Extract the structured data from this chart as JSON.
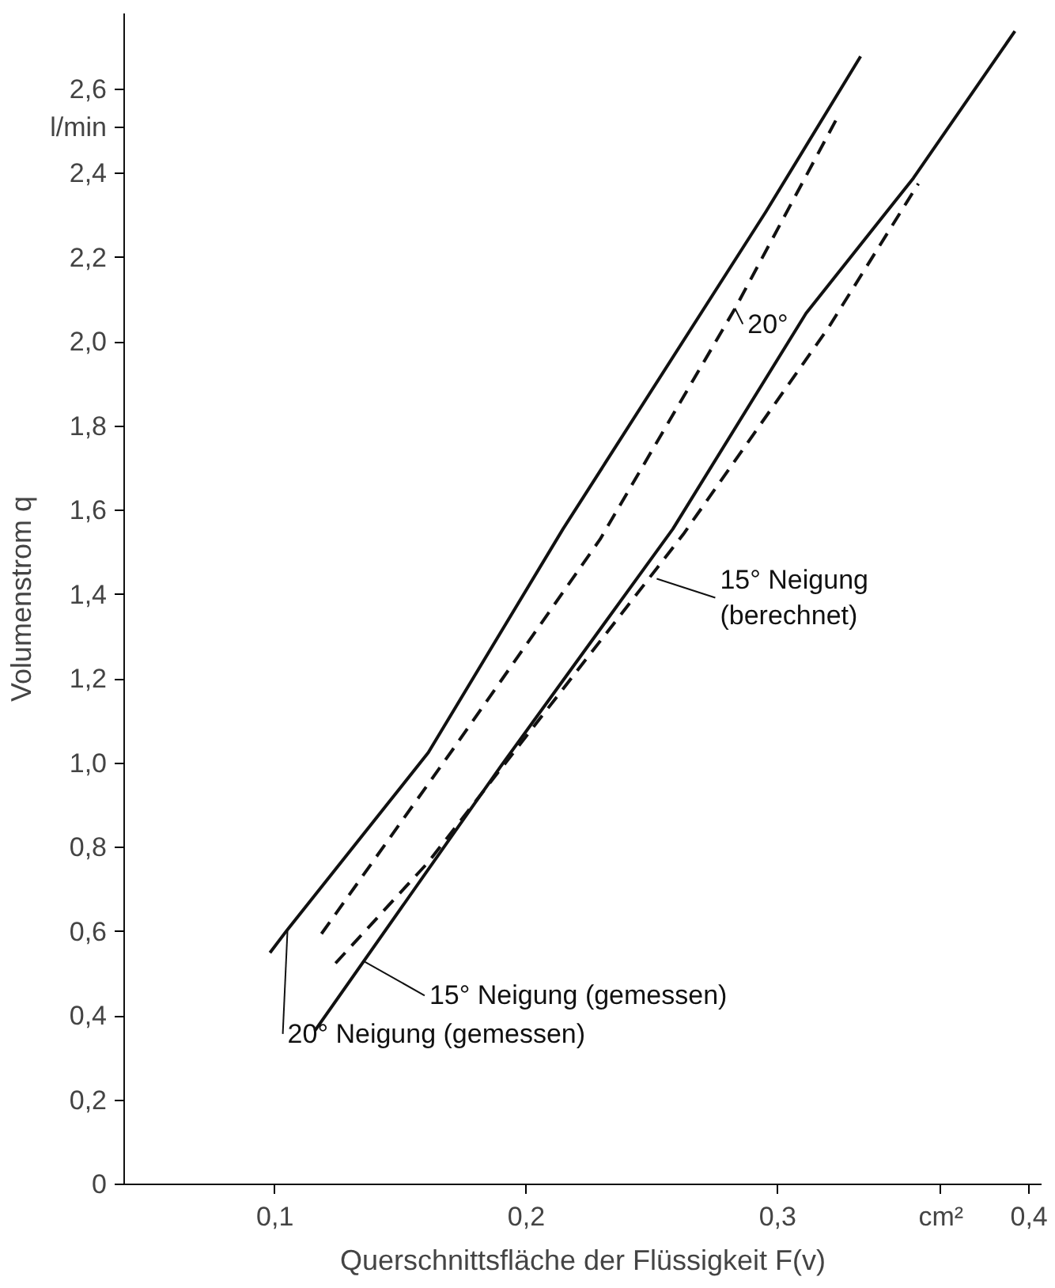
{
  "chart_data": {
    "type": "line",
    "xlabel": "Querschnittsfläche der Flüssigkeit F(v)",
    "ylabel": "Volumenstrom q",
    "xlim": [
      0.04,
      0.405
    ],
    "ylim": [
      0,
      2.78
    ],
    "xticks": [
      {
        "value": 0.1,
        "label": "0,1"
      },
      {
        "value": 0.2,
        "label": "0,2"
      },
      {
        "value": 0.3,
        "label": "0,3"
      },
      {
        "value": 0.4,
        "label": "0,4"
      }
    ],
    "yticks": [
      0,
      {
        "value": 0.2,
        "label": "0,2"
      },
      {
        "value": 0.4,
        "label": "0,4"
      },
      {
        "value": 0.6,
        "label": "0,6"
      },
      {
        "value": 0.8,
        "label": "0,8"
      },
      {
        "value": 1.0,
        "label": "1,0"
      },
      {
        "value": 1.2,
        "label": "1,2"
      },
      {
        "value": 1.4,
        "label": "1,4"
      },
      {
        "value": 1.6,
        "label": "1,6"
      },
      {
        "value": 1.8,
        "label": "1,8"
      },
      {
        "value": 2.0,
        "label": "2,0"
      },
      {
        "value": 2.2,
        "label": "2,2"
      },
      {
        "value": 2.4,
        "label": "2,4"
      },
      {
        "value": 2.6,
        "label": "2,6"
      }
    ],
    "grid": false,
    "series": [
      {
        "color": "#111111",
        "line_style": "solid",
        "x": [
          0.098,
          0.105,
          0.161,
          0.2146,
          0.2953,
          0.333
        ],
        "values": [
          0.55,
          0.605,
          1.025,
          1.556,
          2.309,
          2.678
        ]
      },
      {
        "color": "#111111",
        "line_style": "dashed",
        "x": [
          0.1185,
          0.1713,
          0.2293,
          0.2832,
          0.3243
        ],
        "values": [
          0.595,
          1.037,
          1.531,
          2.081,
          2.539
        ]
      },
      {
        "color": "#111111",
        "line_style": "solid",
        "x": [
          0.1158,
          0.19,
          0.2583,
          0.3113,
          0.354,
          0.3944
        ],
        "values": [
          0.364,
          0.994,
          1.556,
          2.068,
          2.389,
          2.738
        ]
      },
      {
        "color": "#111111",
        "line_style": "dashed",
        "x": [
          0.1241,
          0.161,
          0.2624,
          0.3202,
          0.356
        ],
        "values": [
          0.525,
          0.765,
          1.543,
          2.034,
          2.376
        ]
      }
    ],
    "annotations": [
      "l/min",
      "cm²",
      {
        "text": "20°",
        "x": 0.283,
        "y": 2.08
      },
      {
        "text": "15° Neigung\n(berechnet)",
        "x": 0.2519,
        "y": 1.438
      },
      {
        "text": "15° Neigung (gemessen)",
        "x": 0.135,
        "y": 0.531
      },
      {
        "text": "20° Neigung (gemessen)",
        "x": 0.105,
        "y": 0.605
      }
    ]
  }
}
